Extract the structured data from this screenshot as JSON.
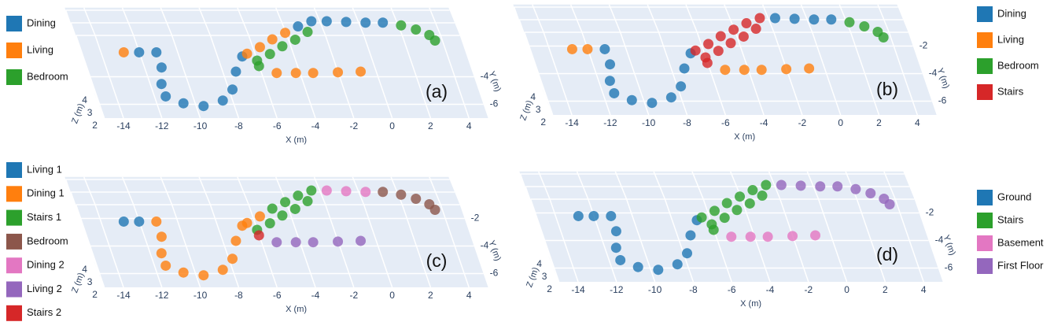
{
  "chart_data": [
    {
      "type": "scatter3d",
      "label": "(a)",
      "xlabel": "X (m)",
      "ylabel": "Y (m)",
      "zlabel": "Z (m)",
      "legend": "left",
      "xlim": [
        -15,
        5
      ],
      "ylim": [
        -7,
        -1
      ],
      "zlim": [
        2,
        4.2
      ],
      "xticks": [
        -14,
        -12,
        -10,
        -8,
        -6,
        -4,
        -2,
        0,
        2,
        4
      ],
      "yticks": [
        -6,
        -4
      ],
      "zticks": [
        2,
        3,
        4
      ],
      "series": [
        {
          "name": "Dining",
          "color": "#1f77b4",
          "x": [
            -12.0,
            -11.1,
            -11.1,
            -11.4,
            -11.4,
            -10.6,
            -9.6,
            -8.5,
            -7.8,
            -7.3,
            -6.7,
            -3.2,
            -2.4,
            -1.6,
            -0.6,
            0.4,
            1.3
          ],
          "y": [
            -2.5,
            -2.5,
            -3.6,
            -4.8,
            -5.7,
            -6.2,
            -6.4,
            -6.0,
            -5.2,
            -3.9,
            -2.8,
            -1.9,
            -1.8,
            -1.8,
            -1.85,
            -1.9,
            -1.9
          ],
          "z": [
            2.3,
            2.3,
            2.3,
            2.3,
            2.3,
            2.3,
            2.3,
            2.3,
            2.3,
            2.3,
            2.3,
            3.7,
            4.0,
            4.0,
            4.0,
            4.0,
            4.0
          ]
        },
        {
          "name": "Living",
          "color": "#ff7f0e",
          "x": [
            -12.8,
            -5.2,
            -4.2,
            -3.3,
            -2.0,
            -0.8,
            -6.4,
            -5.6,
            -4.8,
            -4.0
          ],
          "y": [
            -2.5,
            -4.0,
            -4.0,
            -4.0,
            -3.95,
            -3.9,
            -2.6,
            -2.4,
            -2.2,
            -2.0
          ],
          "z": [
            2.3,
            2.3,
            2.3,
            2.3,
            2.3,
            2.3,
            2.3,
            2.6,
            3.0,
            3.3
          ]
        },
        {
          "name": "Bedroom",
          "color": "#2ca02c",
          "x": [
            -6.0,
            -6.0,
            -5.2,
            -4.4,
            -3.6,
            -2.8,
            2.2,
            2.9,
            3.5,
            3.7
          ],
          "y": [
            -3.5,
            -3.1,
            -2.9,
            -2.7,
            -2.5,
            -2.3,
            -2.1,
            -2.4,
            -2.8,
            -3.2
          ],
          "z": [
            2.3,
            2.3,
            2.6,
            3.0,
            3.3,
            3.7,
            4.0,
            4.0,
            4.0,
            4.0
          ]
        }
      ]
    },
    {
      "type": "scatter3d",
      "label": "(b)",
      "xlabel": "X (m)",
      "ylabel": "Y (m)",
      "zlabel": "Z (m)",
      "legend": "right",
      "xlim": [
        -15,
        5
      ],
      "ylim": [
        -7,
        -1
      ],
      "zlim": [
        2,
        4.2
      ],
      "xticks": [
        -14,
        -12,
        -10,
        -8,
        -6,
        -4,
        -2,
        0,
        2,
        4
      ],
      "yticks": [
        -6,
        -4,
        -2
      ],
      "zticks": [
        2,
        3,
        4
      ],
      "series": [
        {
          "name": "Dining",
          "color": "#1f77b4",
          "x": [
            -11.1,
            -11.1,
            -11.4,
            -11.4,
            -10.6,
            -9.6,
            -8.5,
            -7.8,
            -7.3,
            -6.7,
            -1.6,
            -0.6,
            0.4,
            1.3
          ],
          "y": [
            -2.5,
            -3.6,
            -4.8,
            -5.7,
            -6.2,
            -6.4,
            -6.0,
            -5.2,
            -3.9,
            -2.8,
            -1.8,
            -1.85,
            -1.9,
            -1.9
          ],
          "z": [
            2.3,
            2.3,
            2.3,
            2.3,
            2.3,
            2.3,
            2.3,
            2.3,
            2.3,
            2.3,
            4.0,
            4.0,
            4.0,
            4.0
          ]
        },
        {
          "name": "Living",
          "color": "#ff7f0e",
          "x": [
            -12.8,
            -12.0,
            -5.2,
            -4.2,
            -3.3,
            -2.0,
            -0.8
          ],
          "y": [
            -2.5,
            -2.5,
            -4.0,
            -4.0,
            -4.0,
            -3.95,
            -3.9
          ],
          "z": [
            2.3,
            2.3,
            2.3,
            2.3,
            2.3,
            2.3,
            2.3
          ]
        },
        {
          "name": "Bedroom",
          "color": "#2ca02c",
          "x": [
            2.2,
            2.9,
            3.5,
            3.7
          ],
          "y": [
            -2.1,
            -2.4,
            -2.8,
            -3.2
          ],
          "z": [
            4.0,
            4.0,
            4.0,
            4.0
          ]
        },
        {
          "name": "Stairs",
          "color": "#d62728",
          "x": [
            -6.0,
            -6.4,
            -5.6,
            -4.8,
            -4.0,
            -3.2,
            -2.4,
            -6.0,
            -5.2,
            -4.4,
            -3.6,
            -2.8
          ],
          "y": [
            -3.5,
            -2.6,
            -2.4,
            -2.2,
            -2.0,
            -1.9,
            -1.8,
            -3.1,
            -2.9,
            -2.7,
            -2.5,
            -2.3
          ],
          "z": [
            2.3,
            2.3,
            2.6,
            3.0,
            3.3,
            3.7,
            4.0,
            2.3,
            2.6,
            3.0,
            3.3,
            3.7
          ]
        }
      ]
    },
    {
      "type": "scatter3d",
      "label": "(c)",
      "xlabel": "X (m)",
      "ylabel": "Y (m)",
      "zlabel": "Z (m)",
      "legend": "left",
      "xlim": [
        -15,
        5
      ],
      "ylim": [
        -7,
        -1
      ],
      "zlim": [
        2,
        4.2
      ],
      "xticks": [
        -14,
        -12,
        -10,
        -8,
        -6,
        -4,
        -2,
        0,
        2,
        4
      ],
      "yticks": [
        -6,
        -4,
        -2
      ],
      "zticks": [
        2,
        3,
        4
      ],
      "series": [
        {
          "name": "Living 1",
          "color": "#1f77b4",
          "x": [
            -12.8,
            -12.0
          ],
          "y": [
            -2.5,
            -2.5
          ],
          "z": [
            2.3,
            2.3
          ]
        },
        {
          "name": "Dining 1",
          "color": "#ff7f0e",
          "x": [
            -11.1,
            -11.1,
            -11.4,
            -11.4,
            -10.6,
            -9.6,
            -8.5,
            -7.8,
            -7.3,
            -6.7,
            -6.4,
            -5.6
          ],
          "y": [
            -2.5,
            -3.6,
            -4.8,
            -5.7,
            -6.2,
            -6.4,
            -6.0,
            -5.2,
            -3.9,
            -2.8,
            -2.6,
            -2.4
          ],
          "z": [
            2.3,
            2.3,
            2.3,
            2.3,
            2.3,
            2.3,
            2.3,
            2.3,
            2.3,
            2.3,
            2.3,
            2.6
          ]
        },
        {
          "name": "Stairs 1",
          "color": "#2ca02c",
          "x": [
            -4.8,
            -4.0,
            -3.2,
            -2.4,
            -6.0,
            -5.2,
            -4.4,
            -3.6,
            -2.8
          ],
          "y": [
            -2.2,
            -2.0,
            -1.9,
            -1.8,
            -3.1,
            -2.9,
            -2.7,
            -2.5,
            -2.3
          ],
          "z": [
            3.0,
            3.3,
            3.7,
            4.0,
            2.3,
            2.6,
            3.0,
            3.3,
            3.7
          ]
        },
        {
          "name": "Bedroom",
          "color": "#8c564b",
          "x": [
            1.3,
            2.2,
            2.9,
            3.5,
            3.7
          ],
          "y": [
            -1.9,
            -2.1,
            -2.4,
            -2.8,
            -3.2
          ],
          "z": [
            4.0,
            4.0,
            4.0,
            4.0,
            4.0
          ]
        },
        {
          "name": "Dining 2",
          "color": "#e377c2",
          "x": [
            -1.6,
            -0.6,
            0.4
          ],
          "y": [
            -1.8,
            -1.85,
            -1.9
          ],
          "z": [
            4.0,
            4.0,
            4.0
          ]
        },
        {
          "name": "Living 2",
          "color": "#9467bd",
          "x": [
            -5.2,
            -4.2,
            -3.3,
            -2.0,
            -0.8
          ],
          "y": [
            -4.0,
            -4.0,
            -4.0,
            -3.95,
            -3.9
          ],
          "z": [
            2.3,
            2.3,
            2.3,
            2.3,
            2.3
          ]
        },
        {
          "name": "Stairs 2",
          "color": "#d62728",
          "x": [
            -6.0
          ],
          "y": [
            -3.5
          ],
          "z": [
            2.3
          ]
        }
      ]
    },
    {
      "type": "scatter3d",
      "label": "(d)",
      "xlabel": "X (m)",
      "ylabel": "Y (m)",
      "zlabel": "Z (m)",
      "legend": "right",
      "xlim": [
        -15,
        5
      ],
      "ylim": [
        -7,
        -1
      ],
      "zlim": [
        2,
        4.2
      ],
      "xticks": [
        -14,
        -12,
        -10,
        -8,
        -6,
        -4,
        -2,
        0,
        2,
        4
      ],
      "yticks": [
        -6,
        -4,
        -2
      ],
      "zticks": [
        2,
        3,
        4
      ],
      "series": [
        {
          "name": "Ground",
          "color": "#1f77b4",
          "x": [
            -12.8,
            -12.0,
            -11.1,
            -11.1,
            -11.4,
            -11.4,
            -10.6,
            -9.6,
            -8.5,
            -7.8,
            -7.3,
            -6.7
          ],
          "y": [
            -2.5,
            -2.5,
            -2.5,
            -3.6,
            -4.8,
            -5.7,
            -6.2,
            -6.4,
            -6.0,
            -5.2,
            -3.9,
            -2.8
          ],
          "z": [
            2.3,
            2.3,
            2.3,
            2.3,
            2.3,
            2.3,
            2.3,
            2.3,
            2.3,
            2.3,
            2.3,
            2.3
          ]
        },
        {
          "name": "Stairs",
          "color": "#2ca02c",
          "x": [
            -6.0,
            -6.4,
            -5.6,
            -4.8,
            -4.0,
            -3.2,
            -2.4,
            -6.0,
            -5.2,
            -4.4,
            -3.6,
            -2.8
          ],
          "y": [
            -3.5,
            -2.6,
            -2.4,
            -2.2,
            -2.0,
            -1.9,
            -1.8,
            -3.1,
            -2.9,
            -2.7,
            -2.5,
            -2.3
          ],
          "z": [
            2.3,
            2.3,
            2.6,
            3.0,
            3.3,
            3.7,
            4.0,
            2.3,
            2.6,
            3.0,
            3.3,
            3.7
          ]
        },
        {
          "name": "Basement",
          "color": "#e377c2",
          "x": [
            -5.2,
            -4.2,
            -3.3,
            -2.0,
            -0.8
          ],
          "y": [
            -4.0,
            -4.0,
            -4.0,
            -3.95,
            -3.9
          ],
          "z": [
            2.3,
            2.3,
            2.3,
            2.3,
            2.3
          ]
        },
        {
          "name": "First Floor",
          "color": "#9467bd",
          "x": [
            -1.6,
            -0.6,
            0.4,
            1.3,
            2.2,
            2.9,
            3.5,
            3.7
          ],
          "y": [
            -1.8,
            -1.85,
            -1.9,
            -1.9,
            -2.1,
            -2.4,
            -2.8,
            -3.2
          ],
          "z": [
            4.0,
            4.0,
            4.0,
            4.0,
            4.0,
            4.0,
            4.0,
            4.0
          ]
        }
      ]
    }
  ]
}
